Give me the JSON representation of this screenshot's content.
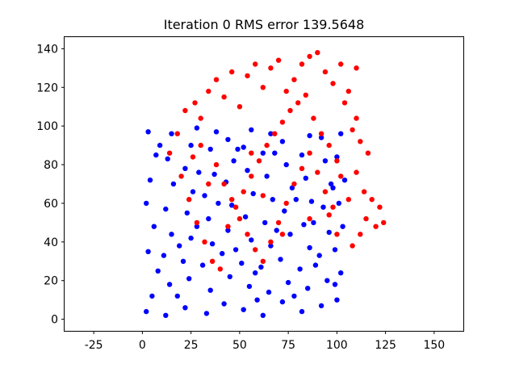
{
  "chart_data": {
    "type": "scatter",
    "title": "Iteration 0  RMS error 139.5648",
    "xlabel": "",
    "ylabel": "",
    "xlim": [
      -40,
      165
    ],
    "ylim": [
      -6,
      146
    ],
    "xticks": [
      -25,
      0,
      25,
      50,
      75,
      100,
      125,
      150
    ],
    "yticks": [
      0,
      20,
      40,
      60,
      80,
      100,
      120,
      140
    ],
    "grid": false,
    "series": [
      {
        "color": "#0000ff",
        "description": "blue point cloud filling roughly x 0..105, y 0..100",
        "points": [
          [
            2,
            4
          ],
          [
            5,
            12
          ],
          [
            8,
            25
          ],
          [
            3,
            35
          ],
          [
            6,
            48
          ],
          [
            2,
            60
          ],
          [
            4,
            72
          ],
          [
            7,
            85
          ],
          [
            3,
            97
          ],
          [
            12,
            2
          ],
          [
            14,
            18
          ],
          [
            11,
            33
          ],
          [
            15,
            44
          ],
          [
            12,
            57
          ],
          [
            16,
            70
          ],
          [
            13,
            83
          ],
          [
            15,
            96
          ],
          [
            22,
            6
          ],
          [
            24,
            21
          ],
          [
            21,
            30
          ],
          [
            25,
            42
          ],
          [
            23,
            55
          ],
          [
            26,
            66
          ],
          [
            22,
            78
          ],
          [
            25,
            90
          ],
          [
            28,
            99
          ],
          [
            33,
            3
          ],
          [
            35,
            15
          ],
          [
            31,
            28
          ],
          [
            36,
            39
          ],
          [
            34,
            52
          ],
          [
            32,
            64
          ],
          [
            37,
            75
          ],
          [
            35,
            88
          ],
          [
            38,
            97
          ],
          [
            42,
            8
          ],
          [
            45,
            22
          ],
          [
            41,
            34
          ],
          [
            44,
            46
          ],
          [
            46,
            59
          ],
          [
            43,
            71
          ],
          [
            47,
            82
          ],
          [
            44,
            93
          ],
          [
            52,
            5
          ],
          [
            55,
            17
          ],
          [
            51,
            29
          ],
          [
            56,
            41
          ],
          [
            53,
            53
          ],
          [
            57,
            65
          ],
          [
            54,
            77
          ],
          [
            52,
            89
          ],
          [
            56,
            98
          ],
          [
            62,
            2
          ],
          [
            65,
            14
          ],
          [
            61,
            27
          ],
          [
            66,
            38
          ],
          [
            63,
            50
          ],
          [
            67,
            62
          ],
          [
            64,
            74
          ],
          [
            62,
            86
          ],
          [
            66,
            96
          ],
          [
            72,
            9
          ],
          [
            75,
            19
          ],
          [
            71,
            31
          ],
          [
            76,
            44
          ],
          [
            73,
            56
          ],
          [
            77,
            68
          ],
          [
            74,
            80
          ],
          [
            72,
            92
          ],
          [
            82,
            4
          ],
          [
            85,
            16
          ],
          [
            81,
            26
          ],
          [
            86,
            37
          ],
          [
            83,
            49
          ],
          [
            87,
            61
          ],
          [
            84,
            73
          ],
          [
            82,
            85
          ],
          [
            86,
            95
          ],
          [
            92,
            7
          ],
          [
            95,
            20
          ],
          [
            91,
            33
          ],
          [
            96,
            45
          ],
          [
            93,
            58
          ],
          [
            97,
            70
          ],
          [
            94,
            82
          ],
          [
            92,
            94
          ],
          [
            100,
            10
          ],
          [
            102,
            24
          ],
          [
            99,
            36
          ],
          [
            103,
            48
          ],
          [
            101,
            60
          ],
          [
            104,
            72
          ],
          [
            100,
            84
          ],
          [
            102,
            96
          ],
          [
            18,
            12
          ],
          [
            28,
            48
          ],
          [
            39,
            60
          ],
          [
            48,
            36
          ],
          [
            58,
            24
          ],
          [
            68,
            86
          ],
          [
            78,
            12
          ],
          [
            88,
            50
          ],
          [
            98,
            68
          ],
          [
            9,
            90
          ],
          [
            19,
            38
          ],
          [
            29,
            76
          ],
          [
            49,
            88
          ],
          [
            59,
            10
          ],
          [
            69,
            46
          ],
          [
            79,
            62
          ],
          [
            89,
            28
          ],
          [
            99,
            18
          ]
        ]
      },
      {
        "color": "#ff0000",
        "description": "red point cloud (rotated/offset copy), roughly x 12..125, y 25..138",
        "points": [
          [
            14,
            86
          ],
          [
            18,
            96
          ],
          [
            22,
            108
          ],
          [
            27,
            112
          ],
          [
            30,
            104
          ],
          [
            34,
            118
          ],
          [
            38,
            124
          ],
          [
            42,
            115
          ],
          [
            46,
            128
          ],
          [
            50,
            110
          ],
          [
            54,
            126
          ],
          [
            58,
            132
          ],
          [
            62,
            120
          ],
          [
            66,
            130
          ],
          [
            70,
            134
          ],
          [
            74,
            118
          ],
          [
            78,
            124
          ],
          [
            82,
            132
          ],
          [
            86,
            136
          ],
          [
            90,
            138
          ],
          [
            94,
            128
          ],
          [
            98,
            122
          ],
          [
            102,
            132
          ],
          [
            106,
            118
          ],
          [
            110,
            130
          ],
          [
            104,
            112
          ],
          [
            108,
            98
          ],
          [
            112,
            92
          ],
          [
            116,
            86
          ],
          [
            110,
            76
          ],
          [
            114,
            66
          ],
          [
            118,
            62
          ],
          [
            122,
            58
          ],
          [
            115,
            52
          ],
          [
            120,
            48
          ],
          [
            124,
            50
          ],
          [
            112,
            44
          ],
          [
            108,
            38
          ],
          [
            100,
            44
          ],
          [
            96,
            54
          ],
          [
            20,
            74
          ],
          [
            24,
            62
          ],
          [
            28,
            50
          ],
          [
            32,
            40
          ],
          [
            36,
            30
          ],
          [
            40,
            26
          ],
          [
            44,
            48
          ],
          [
            48,
            58
          ],
          [
            52,
            66
          ],
          [
            56,
            74
          ],
          [
            60,
            82
          ],
          [
            64,
            90
          ],
          [
            68,
            96
          ],
          [
            72,
            102
          ],
          [
            76,
            108
          ],
          [
            80,
            112
          ],
          [
            84,
            116
          ],
          [
            88,
            104
          ],
          [
            92,
            96
          ],
          [
            96,
            90
          ],
          [
            100,
            82
          ],
          [
            38,
            80
          ],
          [
            42,
            70
          ],
          [
            46,
            62
          ],
          [
            50,
            52
          ],
          [
            54,
            44
          ],
          [
            58,
            36
          ],
          [
            62,
            30
          ],
          [
            66,
            40
          ],
          [
            70,
            50
          ],
          [
            74,
            60
          ],
          [
            78,
            70
          ],
          [
            82,
            78
          ],
          [
            86,
            86
          ],
          [
            90,
            76
          ],
          [
            94,
            66
          ],
          [
            98,
            58
          ],
          [
            30,
            90
          ],
          [
            26,
            84
          ],
          [
            34,
            70
          ],
          [
            56,
            86
          ],
          [
            62,
            64
          ],
          [
            72,
            44
          ],
          [
            86,
            52
          ],
          [
            106,
            62
          ],
          [
            110,
            104
          ],
          [
            102,
            74
          ]
        ]
      }
    ]
  }
}
